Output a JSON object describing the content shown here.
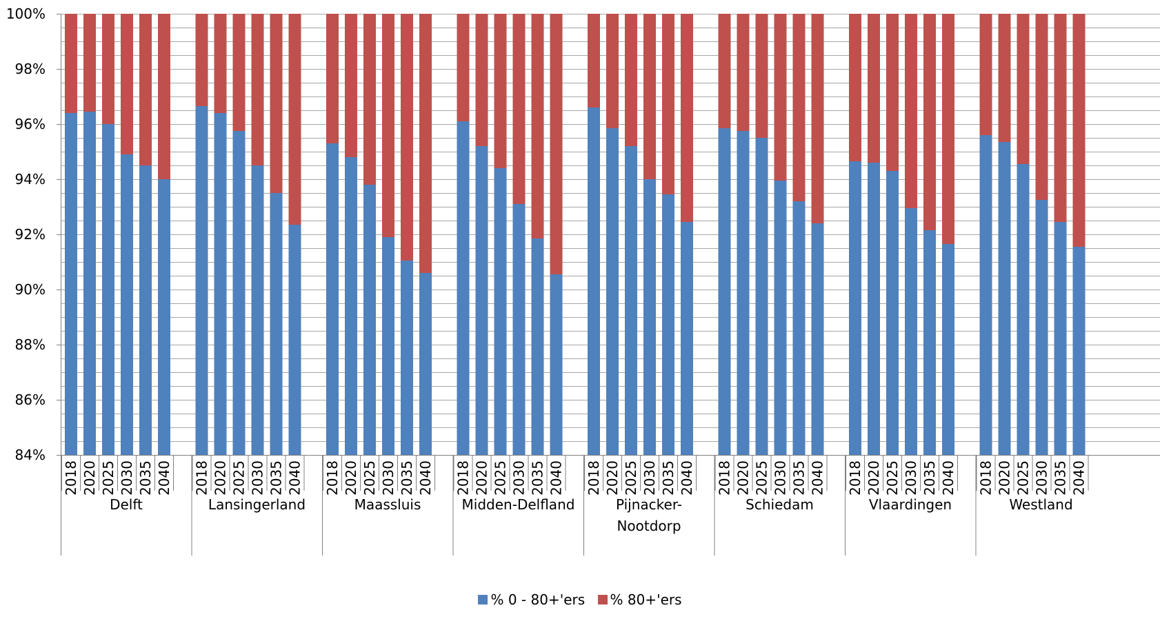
{
  "chart_data": {
    "type": "bar",
    "stacked": true,
    "percent_stacked": true,
    "groups": [
      "Delft",
      "Lansingerland",
      "Maassluis",
      "Midden-Delfland",
      "Pijnacker-\nNootdorp",
      "Schiedam",
      "Vlaardingen",
      "Westland"
    ],
    "years": [
      "2018",
      "2020",
      "2025",
      "2030",
      "2035",
      "2040"
    ],
    "series": [
      {
        "name": "% 0 - 80+'ers",
        "color": "#4F81BD",
        "values": [
          [
            96.4,
            96.45,
            96.0,
            94.9,
            94.5,
            94.0
          ],
          [
            96.65,
            96.4,
            95.75,
            94.5,
            93.5,
            92.35
          ],
          [
            95.3,
            94.8,
            93.8,
            91.9,
            91.05,
            90.6
          ],
          [
            96.1,
            95.2,
            94.4,
            93.1,
            91.85,
            90.55
          ],
          [
            96.6,
            95.85,
            95.2,
            94.0,
            93.45,
            92.45
          ],
          [
            95.85,
            95.75,
            95.5,
            93.95,
            93.2,
            92.4
          ],
          [
            94.65,
            94.6,
            94.3,
            92.95,
            92.15,
            91.65
          ],
          [
            95.6,
            95.35,
            94.55,
            93.25,
            92.45,
            91.55
          ]
        ]
      },
      {
        "name": "% 80+'ers",
        "color": "#C0504D",
        "values": [
          [
            3.6,
            3.55,
            4.0,
            5.1,
            5.5,
            6.0
          ],
          [
            3.35,
            3.6,
            4.25,
            5.5,
            6.5,
            7.65
          ],
          [
            4.7,
            5.2,
            6.2,
            8.1,
            8.95,
            9.4
          ],
          [
            3.9,
            4.8,
            5.6,
            6.9,
            8.15,
            9.45
          ],
          [
            3.4,
            4.15,
            4.8,
            6.0,
            6.55,
            7.55
          ],
          [
            4.15,
            4.25,
            4.5,
            6.05,
            6.8,
            7.6
          ],
          [
            5.35,
            5.4,
            5.7,
            7.05,
            7.85,
            8.35
          ],
          [
            4.4,
            4.65,
            5.45,
            6.75,
            7.55,
            8.45
          ]
        ]
      }
    ],
    "ylim": [
      84,
      100
    ],
    "yticks": [
      "84%",
      "86%",
      "88%",
      "90%",
      "92%",
      "94%",
      "96%",
      "98%",
      "100%"
    ],
    "grid": true,
    "legend_position": "bottom"
  }
}
